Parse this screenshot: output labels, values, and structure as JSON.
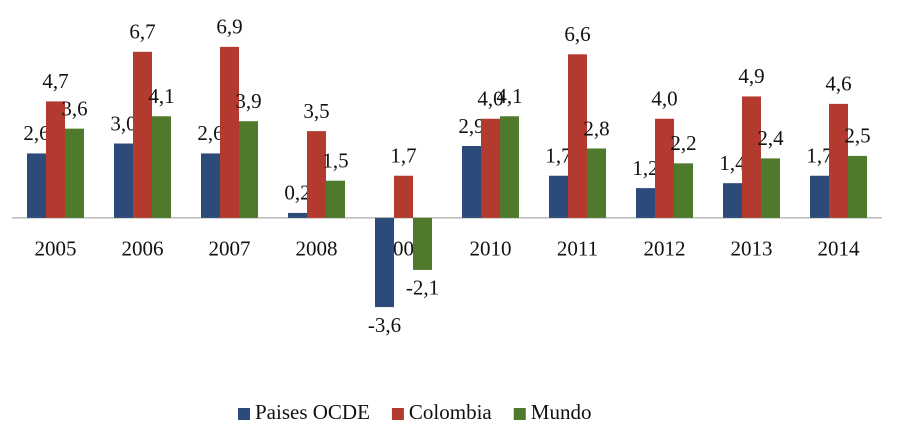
{
  "chart_data": {
    "type": "bar",
    "categories": [
      "2005",
      "2006",
      "2007",
      "2008",
      "2009",
      "2010",
      "2011",
      "2012",
      "2013",
      "2014"
    ],
    "series": [
      {
        "name": "Paises OCDE",
        "color": "#2c4a7a",
        "values": [
          2.6,
          3.0,
          2.6,
          0.2,
          -3.6,
          2.9,
          1.7,
          1.2,
          1.4,
          1.7
        ],
        "value_labels": [
          "2,6",
          "3,0",
          "2,6",
          "0,2",
          "-3,6",
          "2,9",
          "1,7",
          "1,2",
          "1,4",
          "1,7"
        ]
      },
      {
        "name": "Colombia",
        "color": "#b23a2e",
        "values": [
          4.7,
          6.7,
          6.9,
          3.5,
          1.7,
          4.0,
          6.6,
          4.0,
          4.9,
          4.6
        ],
        "value_labels": [
          "4,7",
          "6,7",
          "6,9",
          "3,5",
          "1,7",
          "4,0",
          "6,6",
          "4,0",
          "4,9",
          "4,6"
        ]
      },
      {
        "name": "Mundo",
        "color": "#4f7a2c",
        "values": [
          3.6,
          4.1,
          3.9,
          1.5,
          -2.1,
          4.1,
          2.8,
          2.2,
          2.4,
          2.5
        ],
        "value_labels": [
          "3,6",
          "4,1",
          "3,9",
          "1,5",
          "-2,1",
          "4,1",
          "2,8",
          "2,2",
          "2,4",
          "2,5"
        ]
      }
    ],
    "ylim": [
      -4,
      7.5
    ],
    "legend": "bottom"
  }
}
